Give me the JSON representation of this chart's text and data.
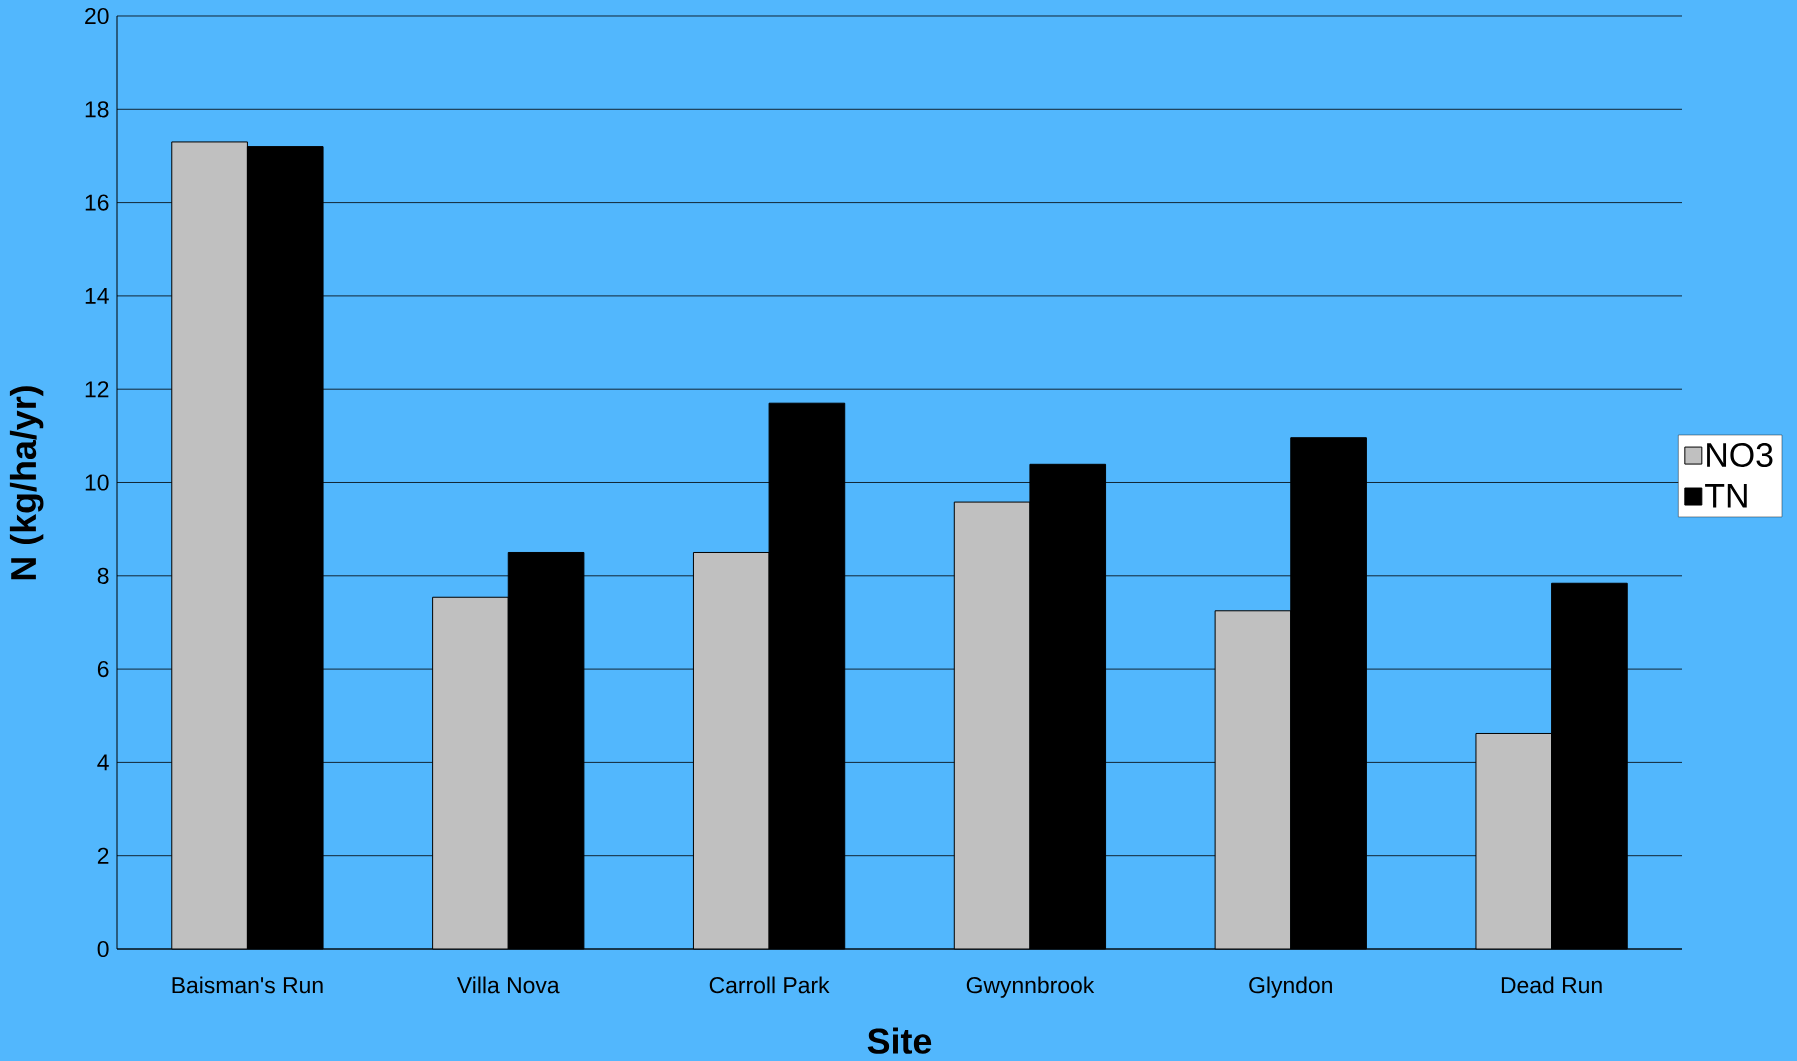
{
  "chart_data": {
    "type": "bar",
    "xlabel": "Site",
    "ylabel": "N (kg/ha/yr)",
    "categories": [
      "Baisman's Run",
      "Villa Nova",
      "Carroll Park",
      "Gwynnbrook",
      "Glyndon",
      "Dead Run"
    ],
    "series": [
      {
        "name": "NO3",
        "color": "#c0c0c0",
        "values": [
          17.3,
          7.54,
          8.5,
          9.58,
          7.25,
          4.62
        ]
      },
      {
        "name": "TN",
        "color": "#000000",
        "values": [
          17.2,
          8.5,
          11.7,
          10.39,
          10.96,
          7.84
        ]
      }
    ],
    "ylim": [
      0,
      20
    ],
    "yticks": [
      0,
      2,
      4,
      6,
      8,
      10,
      12,
      14,
      16,
      18,
      20
    ],
    "grid": "y",
    "legend": "right"
  }
}
